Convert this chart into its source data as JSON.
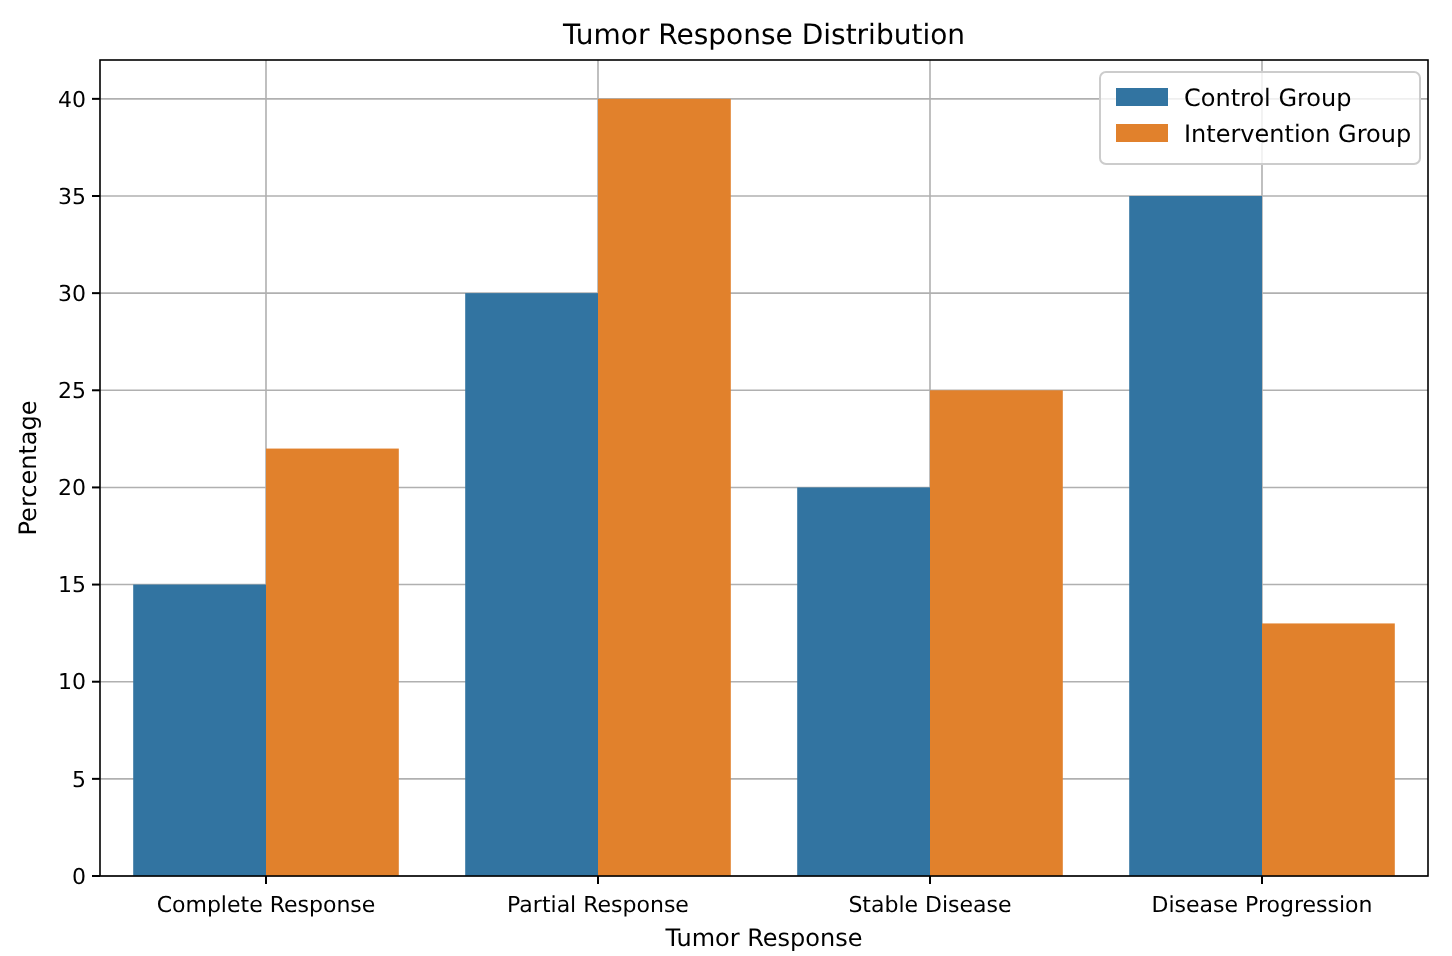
{
  "chart_data": {
    "type": "bar",
    "title": "Tumor Response Distribution",
    "xlabel": "Tumor Response",
    "ylabel": "Percentage",
    "categories": [
      "Complete Response",
      "Partial Response",
      "Stable Disease",
      "Disease Progression"
    ],
    "series": [
      {
        "name": "Control Group",
        "color": "#3274a1",
        "values": [
          15,
          30,
          20,
          35
        ]
      },
      {
        "name": "Intervention Group",
        "color": "#e1812c",
        "values": [
          22,
          40,
          25,
          13
        ]
      }
    ],
    "ylim": [
      0,
      42
    ],
    "yticks": [
      0,
      5,
      10,
      15,
      20,
      25,
      30,
      35,
      40
    ],
    "grid": true,
    "legend": "top right"
  }
}
